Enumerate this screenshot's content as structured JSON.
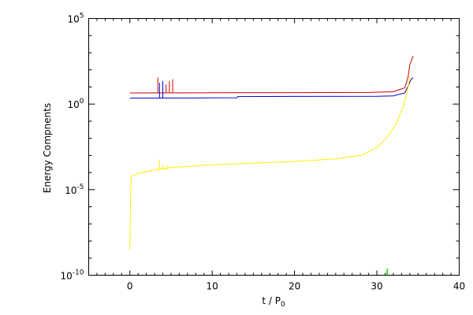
{
  "chart_data": {
    "type": "line",
    "title": "",
    "xlabel": "t / P",
    "xlabel_sub": "0",
    "ylabel": "Energy Compnents",
    "xlim": [
      -5,
      40
    ],
    "ylim_log10": [
      -10,
      5
    ],
    "yscale": "log",
    "grid": false,
    "legend": "none",
    "x_ticks": [
      0,
      10,
      20,
      30,
      40
    ],
    "x_tick_labels": [
      "0",
      "10",
      "20",
      "30",
      "40"
    ],
    "y_ticks_log10": [
      -10,
      -5,
      0,
      5
    ],
    "y_tick_labels": [
      {
        "base": "10",
        "exp": "-10"
      },
      {
        "base": "10",
        "exp": "-5"
      },
      {
        "base": "10",
        "exp": "0"
      },
      {
        "base": "10",
        "exp": "5"
      }
    ],
    "series": [
      {
        "color": "#cc0000",
        "log10_points": [
          [
            0,
            0.65
          ],
          [
            10,
            0.66
          ],
          [
            20,
            0.67
          ],
          [
            29,
            0.68
          ],
          [
            32,
            0.72
          ],
          [
            33.4,
            0.95
          ],
          [
            33.8,
            1.6
          ],
          [
            34.0,
            2.3
          ],
          [
            34.4,
            2.8
          ]
        ]
      },
      {
        "color": "#0000cc",
        "log10_points": [
          [
            0,
            0.35
          ],
          [
            10,
            0.36
          ],
          [
            13,
            0.37
          ],
          [
            13.1,
            0.44
          ],
          [
            20,
            0.45
          ],
          [
            30,
            0.46
          ],
          [
            32,
            0.48
          ],
          [
            33.4,
            0.65
          ],
          [
            33.8,
            1.05
          ],
          [
            34.1,
            1.4
          ],
          [
            34.4,
            1.55
          ]
        ]
      },
      {
        "color": "#ffee00",
        "log10_points": [
          [
            0,
            -8.5
          ],
          [
            0.1,
            -5.0
          ],
          [
            0.2,
            -4.2
          ],
          [
            1,
            -4.05
          ],
          [
            3,
            -3.85
          ],
          [
            5,
            -3.7
          ],
          [
            10,
            -3.55
          ],
          [
            15,
            -3.45
          ],
          [
            20,
            -3.35
          ],
          [
            25,
            -3.2
          ],
          [
            28,
            -3.0
          ],
          [
            30,
            -2.55
          ],
          [
            31.5,
            -1.8
          ],
          [
            32.5,
            -1.0
          ],
          [
            33.3,
            0.0
          ],
          [
            33.8,
            1.0
          ],
          [
            34.0,
            1.6
          ]
        ]
      },
      {
        "color": "#00cc00",
        "log10_points": [
          [
            31.2,
            -10.0
          ],
          [
            31.25,
            -9.6
          ],
          [
            31.3,
            -10.0
          ]
        ]
      }
    ],
    "glitches": [
      {
        "color": "#cc0000",
        "x": 3.4,
        "log10_y": 0.65,
        "log10_h": 0.9
      },
      {
        "color": "#cc0000",
        "x": 4.0,
        "log10_y": 0.65,
        "log10_h": 0.6
      },
      {
        "color": "#cc0000",
        "x": 4.4,
        "log10_y": 0.65,
        "log10_h": 0.5
      },
      {
        "color": "#cc0000",
        "x": 4.8,
        "log10_y": 0.65,
        "log10_h": 0.7
      },
      {
        "color": "#cc0000",
        "x": 5.2,
        "log10_y": 0.65,
        "log10_h": 0.8
      },
      {
        "color": "#0000cc",
        "x": 3.6,
        "log10_y": 0.35,
        "log10_h": 0.9
      },
      {
        "color": "#0000cc",
        "x": 4.0,
        "log10_y": 0.35,
        "log10_h": 1.0
      },
      {
        "color": "#ffee00",
        "x": 3.6,
        "log10_y": -3.85,
        "log10_h": 0.6
      },
      {
        "color": "#ffee00",
        "x": 4.0,
        "log10_y": -3.85,
        "log10_h": 0.3
      },
      {
        "color": "#ffee00",
        "x": 4.5,
        "log10_y": -3.85,
        "log10_h": 0.25
      }
    ]
  }
}
